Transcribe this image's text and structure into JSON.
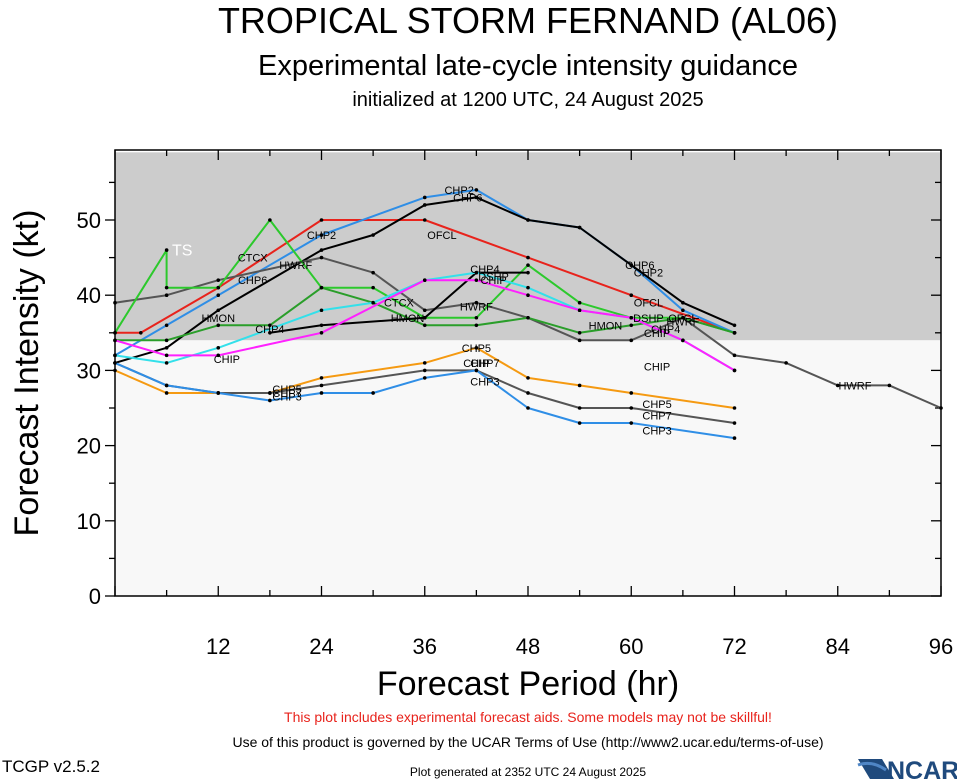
{
  "header": {
    "title": "TROPICAL STORM FERNAND (AL06)",
    "subtitle": "Experimental late-cycle intensity guidance",
    "initialized": "initialized at 1200 UTC, 24 August 2025"
  },
  "footer": {
    "warning": "This plot includes experimental forecast aids. Some models may not be skillful!",
    "terms": "Use of this product is governed by the UCAR Terms of Use (http://www2.ucar.edu/terms-of-use)",
    "version": "TCGP v2.5.2",
    "generated": "Plot generated at 2352 UTC   24 August 2025",
    "logo_text": "NCAR"
  },
  "chart_data": {
    "type": "line",
    "xlabel": "Forecast Period (hr)",
    "ylabel": "Forecast Intensity (kt)",
    "xlim": [
      0,
      96
    ],
    "ylim": [
      0,
      60
    ],
    "xticks": [
      12,
      24,
      36,
      48,
      60,
      72,
      84,
      96
    ],
    "yticks": [
      0,
      10,
      20,
      30,
      40,
      50
    ],
    "bands": [
      {
        "label": "TS",
        "from": 34,
        "to": 59,
        "color": "#cccccc"
      },
      {
        "label": "",
        "from": 0,
        "to": 34,
        "color": "#f8f8f8"
      }
    ],
    "series": [
      {
        "name": "OFCL",
        "color": "#e8231c",
        "points": [
          [
            0,
            35
          ],
          [
            3,
            35
          ],
          [
            12,
            41
          ],
          [
            24,
            50
          ],
          [
            36,
            50
          ],
          [
            48,
            45
          ],
          [
            60,
            40
          ],
          [
            72,
            35
          ]
        ],
        "labels": [
          [
            38,
            48
          ],
          [
            62,
            39
          ],
          [
            66,
            37
          ]
        ]
      },
      {
        "name": "CHP2",
        "color": "#2f8ee6",
        "points": [
          [
            0,
            32
          ],
          [
            6,
            36
          ],
          [
            12,
            40
          ],
          [
            24,
            48
          ],
          [
            36,
            53
          ],
          [
            42,
            54
          ],
          [
            48,
            50
          ],
          [
            54,
            49
          ],
          [
            60,
            44
          ],
          [
            66,
            38
          ],
          [
            72,
            35
          ]
        ],
        "labels": [
          [
            40,
            54
          ],
          [
            24,
            48
          ],
          [
            62,
            43
          ]
        ]
      },
      {
        "name": "CHP6",
        "color": "#000000",
        "points": [
          [
            0,
            31
          ],
          [
            6,
            33
          ],
          [
            12,
            38
          ],
          [
            24,
            46
          ],
          [
            30,
            48
          ],
          [
            36,
            52
          ],
          [
            42,
            53
          ],
          [
            48,
            50
          ],
          [
            54,
            49
          ],
          [
            60,
            44
          ],
          [
            66,
            39
          ],
          [
            72,
            36
          ]
        ],
        "labels": [
          [
            41,
            53
          ],
          [
            16,
            42
          ],
          [
            61,
            44
          ]
        ]
      },
      {
        "name": "HWRF",
        "color": "#555555",
        "points": [
          [
            0,
            39
          ],
          [
            6,
            40
          ],
          [
            12,
            42
          ],
          [
            24,
            45
          ],
          [
            30,
            43
          ],
          [
            36,
            38
          ],
          [
            42,
            39
          ],
          [
            48,
            37
          ],
          [
            54,
            34
          ],
          [
            60,
            34
          ],
          [
            66,
            37
          ],
          [
            72,
            32
          ],
          [
            78,
            31
          ],
          [
            84,
            28
          ],
          [
            90,
            28
          ],
          [
            96,
            25
          ]
        ],
        "labels": [
          [
            21,
            44
          ],
          [
            42,
            38.5
          ],
          [
            86,
            28
          ],
          [
            66,
            36.5
          ]
        ]
      },
      {
        "name": "CTCX",
        "color": "#2cc92c",
        "points": [
          [
            0,
            35
          ],
          [
            6,
            46
          ],
          [
            6,
            41
          ],
          [
            12,
            41
          ],
          [
            18,
            50
          ],
          [
            24,
            41
          ],
          [
            30,
            41
          ],
          [
            36,
            37
          ],
          [
            42,
            37
          ],
          [
            48,
            44
          ],
          [
            54,
            39
          ],
          [
            60,
            37
          ],
          [
            66,
            37
          ],
          [
            72,
            35
          ]
        ],
        "labels": [
          [
            16,
            45
          ],
          [
            33,
            39
          ]
        ]
      },
      {
        "name": "HMON",
        "color": "#2a9e2a",
        "points": [
          [
            0,
            34
          ],
          [
            6,
            34
          ],
          [
            12,
            36
          ],
          [
            18,
            36
          ],
          [
            24,
            41
          ],
          [
            30,
            39
          ],
          [
            36,
            36
          ],
          [
            42,
            36
          ],
          [
            48,
            37
          ],
          [
            54,
            35
          ],
          [
            60,
            36
          ],
          [
            66,
            37
          ],
          [
            72,
            35
          ]
        ],
        "labels": [
          [
            12,
            37
          ],
          [
            34,
            37
          ],
          [
            57,
            36
          ]
        ]
      },
      {
        "name": "DSHP",
        "color": "#000000",
        "points": [
          [
            18,
            35
          ],
          [
            24,
            36
          ],
          [
            36,
            37
          ],
          [
            42,
            43
          ],
          [
            48,
            43
          ]
        ],
        "labels": [
          [
            44,
            42.5
          ],
          [
            62,
            37
          ]
        ]
      },
      {
        "name": "CHP4",
        "color": "#33e0ea",
        "points": [
          [
            0,
            32
          ],
          [
            6,
            31
          ],
          [
            12,
            33
          ],
          [
            24,
            38
          ],
          [
            30,
            39
          ],
          [
            36,
            42
          ],
          [
            42,
            43
          ],
          [
            48,
            41
          ],
          [
            54,
            38
          ],
          [
            60,
            37
          ],
          [
            66,
            34
          ],
          [
            72,
            30
          ]
        ],
        "labels": [
          [
            18,
            35.5
          ],
          [
            43,
            43.5
          ],
          [
            64,
            35.5
          ]
        ]
      },
      {
        "name": "CHIP",
        "color": "#ff21ff",
        "points": [
          [
            0,
            34
          ],
          [
            6,
            32
          ],
          [
            12,
            32
          ],
          [
            24,
            35
          ],
          [
            36,
            42
          ],
          [
            42,
            42
          ],
          [
            48,
            40
          ],
          [
            54,
            38
          ],
          [
            60,
            37
          ],
          [
            66,
            34
          ],
          [
            72,
            30
          ]
        ],
        "labels": [
          [
            13,
            31.5
          ],
          [
            42,
            31
          ],
          [
            63,
            30.5
          ],
          [
            44,
            42
          ],
          [
            63,
            35
          ]
        ]
      },
      {
        "name": "CHP5",
        "color": "#f59a12",
        "points": [
          [
            0,
            30
          ],
          [
            6,
            27
          ],
          [
            12,
            27
          ],
          [
            18,
            27
          ],
          [
            24,
            29
          ],
          [
            36,
            31
          ],
          [
            42,
            33
          ],
          [
            48,
            29
          ],
          [
            54,
            28
          ],
          [
            60,
            27
          ],
          [
            72,
            25
          ]
        ],
        "labels": [
          [
            20,
            27.5
          ],
          [
            42,
            33
          ],
          [
            63,
            25.5
          ]
        ]
      },
      {
        "name": "CHP7",
        "color": "#555555",
        "points": [
          [
            0,
            31
          ],
          [
            6,
            28
          ],
          [
            12,
            27
          ],
          [
            18,
            27
          ],
          [
            24,
            28
          ],
          [
            36,
            30
          ],
          [
            42,
            30
          ],
          [
            48,
            27
          ],
          [
            54,
            25
          ],
          [
            60,
            25
          ],
          [
            72,
            23
          ]
        ],
        "labels": [
          [
            20,
            27
          ],
          [
            43,
            31
          ],
          [
            63,
            24
          ]
        ]
      },
      {
        "name": "CHP3",
        "color": "#2f8ee6",
        "points": [
          [
            0,
            31
          ],
          [
            6,
            28
          ],
          [
            12,
            27
          ],
          [
            18,
            26
          ],
          [
            24,
            27
          ],
          [
            30,
            27
          ],
          [
            36,
            29
          ],
          [
            42,
            30
          ],
          [
            48,
            25
          ],
          [
            54,
            23
          ],
          [
            60,
            23
          ],
          [
            72,
            21
          ]
        ],
        "labels": [
          [
            20,
            26.5
          ],
          [
            43,
            28.5
          ],
          [
            63,
            22
          ]
        ]
      }
    ]
  }
}
